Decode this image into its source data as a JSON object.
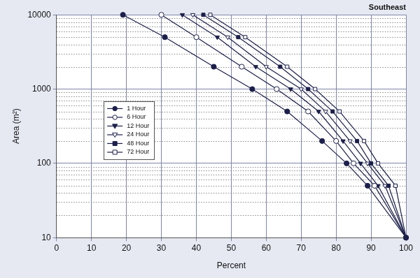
{
  "chart_data": {
    "type": "line",
    "title": "Southeast",
    "x_label": "Percent",
    "y_label": "Area (m²)",
    "xlim": [
      0,
      100
    ],
    "xticks": [
      0,
      10,
      20,
      30,
      40,
      50,
      60,
      70,
      80,
      90,
      100
    ],
    "ylim": [
      10,
      10000
    ],
    "yticks": [
      10,
      100,
      1000,
      10000
    ],
    "log": "y",
    "grid": true,
    "legend": "left",
    "color": "#1c1f4a",
    "series": [
      {
        "name": "1 Hour",
        "marker": "circle",
        "x": [
          19,
          31,
          45,
          56,
          66,
          76,
          83,
          89,
          100
        ],
        "values": [
          10000,
          5000,
          2000,
          1000,
          500,
          200,
          100,
          50,
          10
        ]
      },
      {
        "name": "6 Hour",
        "marker": "circle-open",
        "x": [
          30,
          40,
          53,
          63,
          72,
          80,
          85,
          91,
          100
        ],
        "values": [
          10000,
          5000,
          2000,
          1000,
          500,
          200,
          100,
          50,
          10
        ]
      },
      {
        "name": "12 Hour",
        "marker": "triangle-down",
        "x": [
          36,
          46,
          57,
          67,
          75,
          82,
          87,
          92,
          100
        ],
        "values": [
          10000,
          5000,
          2000,
          1000,
          500,
          200,
          100,
          50,
          10
        ]
      },
      {
        "name": "24 Hour",
        "marker": "triangle-down-open",
        "x": [
          39,
          49,
          60,
          70,
          77,
          84,
          89,
          94,
          100
        ],
        "values": [
          10000,
          5000,
          2000,
          1000,
          500,
          200,
          100,
          50,
          10
        ]
      },
      {
        "name": "48 Hour",
        "marker": "square",
        "x": [
          42,
          52,
          64,
          72,
          79,
          86,
          90,
          95,
          100
        ],
        "values": [
          10000,
          5000,
          2000,
          1000,
          500,
          200,
          100,
          50,
          10
        ]
      },
      {
        "name": "72 Hour",
        "marker": "square-open",
        "x": [
          44,
          54,
          66,
          74,
          81,
          88,
          92,
          97,
          100
        ],
        "values": [
          10000,
          5000,
          2000,
          1000,
          500,
          200,
          100,
          50,
          10
        ]
      }
    ]
  }
}
